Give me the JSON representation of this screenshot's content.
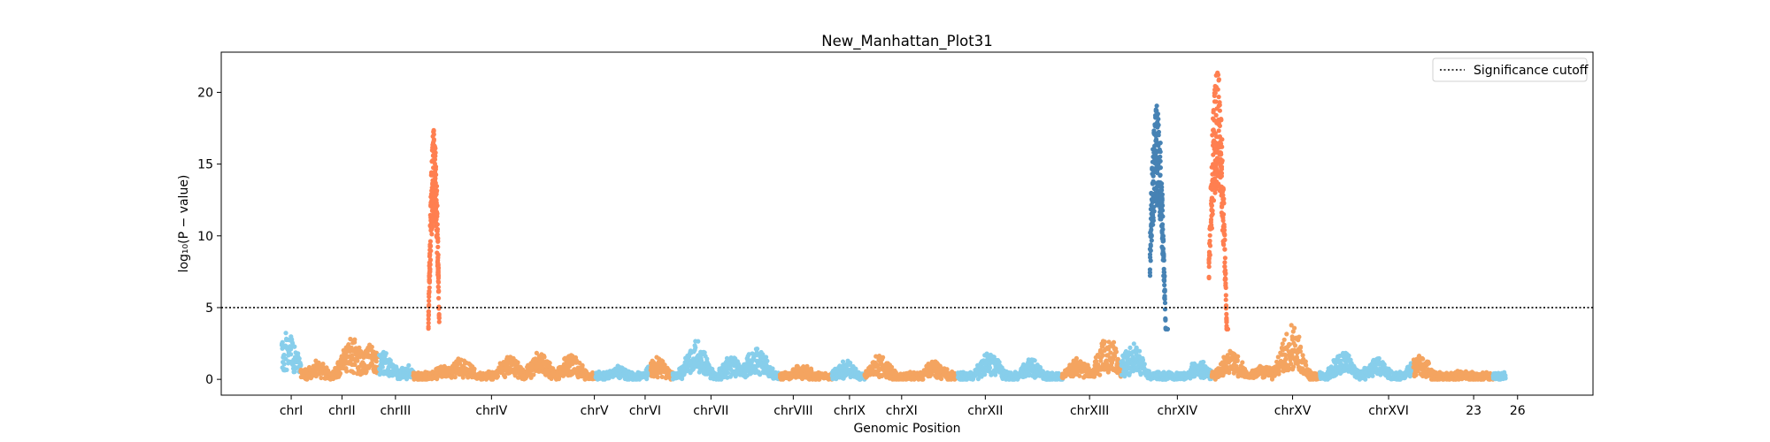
{
  "chart_data": {
    "type": "scatter",
    "title": "New_Manhattan_Plot31",
    "xlabel": "Genomic Position",
    "ylabel": "log₁₀(P − value)",
    "ylim": [
      -1.1,
      22.8
    ],
    "xlim": [
      0,
      1000
    ],
    "yticks": [
      0,
      5,
      10,
      15,
      20
    ],
    "grid": false,
    "colors": {
      "light_blue": "#87ceeb",
      "sandy_orange": "#f4a460",
      "coral": "#ff7f50",
      "steel_blue": "#4682b4",
      "threshold": "#000000"
    },
    "threshold": {
      "value": 5,
      "label": "Significance cutoff",
      "style": "dotted"
    },
    "legend": {
      "position": "top-right",
      "entries": [
        "Significance cutoff"
      ]
    },
    "chromosomes": [
      {
        "label": "chrI",
        "start": 44,
        "end": 58,
        "center": 51,
        "color": "light_blue"
      },
      {
        "label": "chrII",
        "start": 58,
        "end": 115,
        "center": 88,
        "color": "sandy_orange"
      },
      {
        "label": "chrIII",
        "start": 115,
        "end": 140,
        "center": 127,
        "color": "light_blue"
      },
      {
        "label": "chrIV",
        "start": 140,
        "end": 273,
        "center": 197,
        "color": "sandy_orange"
      },
      {
        "label": "chrV",
        "start": 273,
        "end": 313,
        "center": 272,
        "color": "light_blue"
      },
      {
        "label": "chrVI",
        "start": 313,
        "end": 329,
        "center": 309,
        "color": "sandy_orange"
      },
      {
        "label": "chrVII",
        "start": 329,
        "end": 407,
        "center": 357,
        "color": "light_blue"
      },
      {
        "label": "chrVIII",
        "start": 407,
        "end": 445,
        "center": 417,
        "color": "sandy_orange"
      },
      {
        "label": "chrIX",
        "start": 445,
        "end": 469,
        "center": 458,
        "color": "light_blue"
      },
      {
        "label": "chrXI",
        "start": 469,
        "end": 537,
        "center": 496,
        "color": "sandy_orange"
      },
      {
        "label": "chrXII",
        "start": 537,
        "end": 613,
        "center": 557,
        "color": "light_blue"
      },
      {
        "label": "chrXIII",
        "start": 613,
        "end": 656,
        "center": 633,
        "color": "sandy_orange"
      },
      {
        "label": "chrXIV",
        "start": 656,
        "end": 722,
        "center": 697,
        "color": "light_blue"
      },
      {
        "label": "chrXV",
        "start": 722,
        "end": 801,
        "center": 781,
        "color": "sandy_orange"
      },
      {
        "label": "chrXVI",
        "start": 801,
        "end": 869,
        "center": 851,
        "color": "light_blue"
      },
      {
        "label": "23",
        "start": 869,
        "end": 927,
        "center": 913,
        "color": "sandy_orange"
      },
      {
        "label": "26",
        "start": 927,
        "end": 936,
        "center": 945,
        "color": "light_blue"
      }
    ],
    "baseline_bumps": [
      {
        "x": 48,
        "y": 3.2
      },
      {
        "x": 70,
        "y": 1.2
      },
      {
        "x": 95,
        "y": 2.8
      },
      {
        "x": 108,
        "y": 2.4
      },
      {
        "x": 118,
        "y": 1.8
      },
      {
        "x": 135,
        "y": 0.8
      },
      {
        "x": 160,
        "y": 0.9
      },
      {
        "x": 175,
        "y": 1.4
      },
      {
        "x": 210,
        "y": 1.6
      },
      {
        "x": 232,
        "y": 1.8
      },
      {
        "x": 255,
        "y": 1.7
      },
      {
        "x": 290,
        "y": 0.8
      },
      {
        "x": 318,
        "y": 1.4
      },
      {
        "x": 346,
        "y": 2.8
      },
      {
        "x": 372,
        "y": 1.5
      },
      {
        "x": 390,
        "y": 2.3
      },
      {
        "x": 423,
        "y": 1.0
      },
      {
        "x": 455,
        "y": 1.2
      },
      {
        "x": 480,
        "y": 1.6
      },
      {
        "x": 520,
        "y": 1.2
      },
      {
        "x": 560,
        "y": 1.8
      },
      {
        "x": 590,
        "y": 1.3
      },
      {
        "x": 625,
        "y": 1.4
      },
      {
        "x": 646,
        "y": 3.0
      },
      {
        "x": 664,
        "y": 2.5
      },
      {
        "x": 713,
        "y": 1.2
      },
      {
        "x": 736,
        "y": 2.0
      },
      {
        "x": 760,
        "y": 1.0
      },
      {
        "x": 780,
        "y": 3.8
      },
      {
        "x": 818,
        "y": 2.0
      },
      {
        "x": 842,
        "y": 1.4
      },
      {
        "x": 873,
        "y": 1.6
      },
      {
        "x": 905,
        "y": 0.5
      },
      {
        "x": 946,
        "y": 1.4
      }
    ],
    "peaks": [
      {
        "x": 155,
        "xmin": 151,
        "xmax": 159,
        "ymax": 17.5,
        "color": "coral"
      },
      {
        "x": 682,
        "xmin": 677,
        "xmax": 690,
        "ymax": 19.1,
        "color": "steel_blue"
      },
      {
        "x": 726,
        "xmin": 720,
        "xmax": 734,
        "ymax": 21.6,
        "color": "coral"
      }
    ]
  }
}
